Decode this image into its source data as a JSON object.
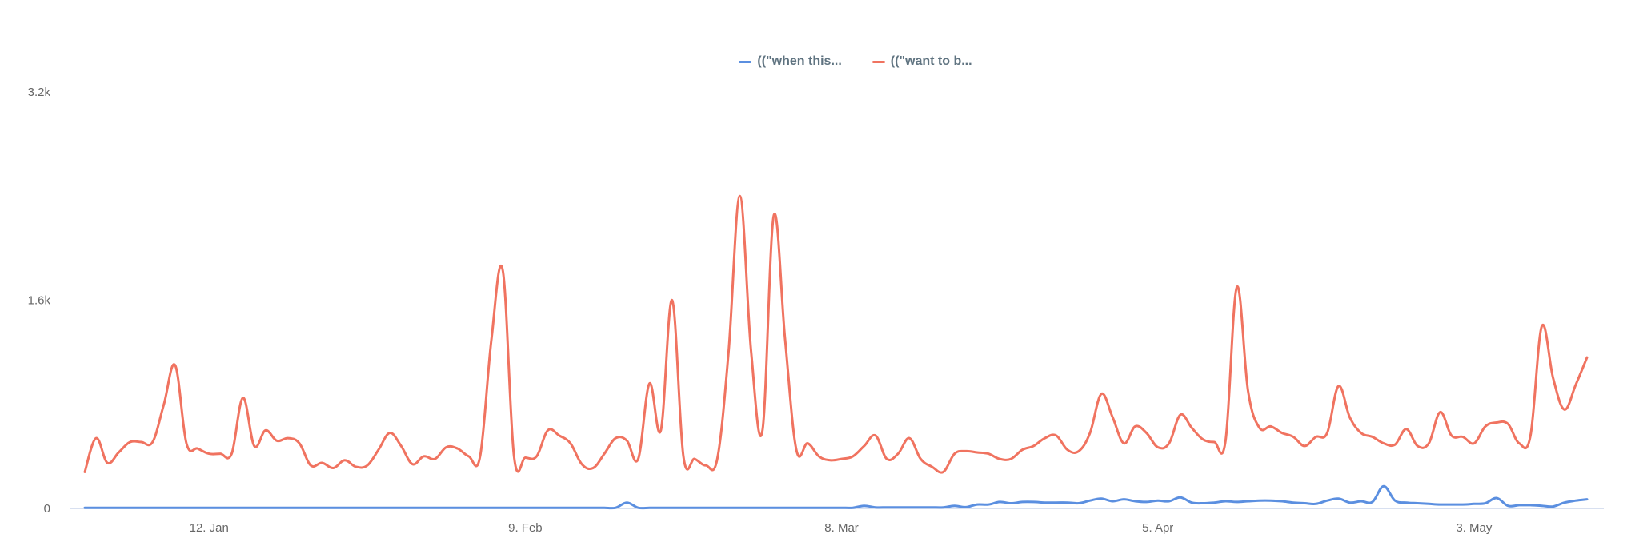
{
  "chart_data": {
    "type": "line",
    "title": "",
    "xlabel": "",
    "ylabel": "",
    "start_date": "Jan 1",
    "x_unit": "day",
    "x_tick_labels": [
      {
        "label": "12. Jan",
        "day": 11
      },
      {
        "label": "9. Feb",
        "day": 39
      },
      {
        "label": "8. Mar",
        "day": 67
      },
      {
        "label": "5. Apr",
        "day": 95
      },
      {
        "label": "3. May",
        "day": 123
      }
    ],
    "y_ticks": [
      {
        "label": "0",
        "value": 0
      },
      {
        "label": "1.6k",
        "value": 1600
      },
      {
        "label": "3.2k",
        "value": 3200
      }
    ],
    "ylim": [
      0,
      3200
    ],
    "grid": false,
    "legend_position": "top-center",
    "series": [
      {
        "name": "((\"when this...",
        "color": "#5b8fe0",
        "values": [
          5,
          5,
          5,
          5,
          5,
          5,
          5,
          5,
          5,
          5,
          5,
          5,
          5,
          5,
          5,
          5,
          5,
          5,
          5,
          5,
          5,
          5,
          5,
          5,
          5,
          5,
          5,
          5,
          5,
          5,
          5,
          5,
          5,
          5,
          5,
          5,
          5,
          5,
          5,
          5,
          5,
          5,
          5,
          5,
          5,
          5,
          5,
          5,
          45,
          5,
          5,
          5,
          5,
          5,
          5,
          5,
          5,
          5,
          5,
          5,
          5,
          5,
          5,
          5,
          5,
          5,
          5,
          5,
          5,
          20,
          8,
          8,
          8,
          8,
          8,
          8,
          8,
          20,
          10,
          30,
          30,
          50,
          40,
          50,
          50,
          45,
          45,
          45,
          40,
          60,
          75,
          55,
          70,
          55,
          50,
          60,
          55,
          85,
          45,
          40,
          45,
          55,
          50,
          55,
          60,
          60,
          55,
          45,
          40,
          35,
          60,
          75,
          45,
          55,
          50,
          170,
          60,
          45,
          40,
          35,
          30,
          30,
          30,
          35,
          40,
          80,
          20,
          25,
          25,
          20,
          15,
          45,
          60,
          70
        ]
      },
      {
        "name": "((\"want to b...",
        "color": "#f07360",
        "values": [
          280,
          540,
          350,
          430,
          510,
          510,
          510,
          800,
          1100,
          500,
          460,
          420,
          420,
          420,
          850,
          480,
          600,
          520,
          540,
          500,
          330,
          350,
          310,
          370,
          320,
          330,
          450,
          580,
          480,
          340,
          400,
          380,
          470,
          460,
          400,
          400,
          1300,
          1830,
          400,
          390,
          400,
          600,
          560,
          500,
          340,
          310,
          420,
          540,
          520,
          380,
          960,
          600,
          1600,
          400,
          380,
          330,
          380,
          1200,
          2400,
          1200,
          600,
          2250,
          1300,
          450,
          500,
          400,
          370,
          380,
          400,
          480,
          560,
          380,
          420,
          540,
          380,
          320,
          280,
          420,
          440,
          430,
          420,
          380,
          380,
          450,
          480,
          540,
          560,
          450,
          440,
          580,
          880,
          700,
          500,
          630,
          580,
          470,
          500,
          720,
          620,
          530,
          510,
          520,
          1700,
          900,
          620,
          630,
          580,
          550,
          480,
          550,
          580,
          940,
          700,
          580,
          550,
          500,
          490,
          610,
          480,
          500,
          740,
          560,
          550,
          500,
          630,
          660,
          650,
          500,
          560,
          1400,
          1000,
          760,
          950,
          1160
        ]
      }
    ]
  }
}
